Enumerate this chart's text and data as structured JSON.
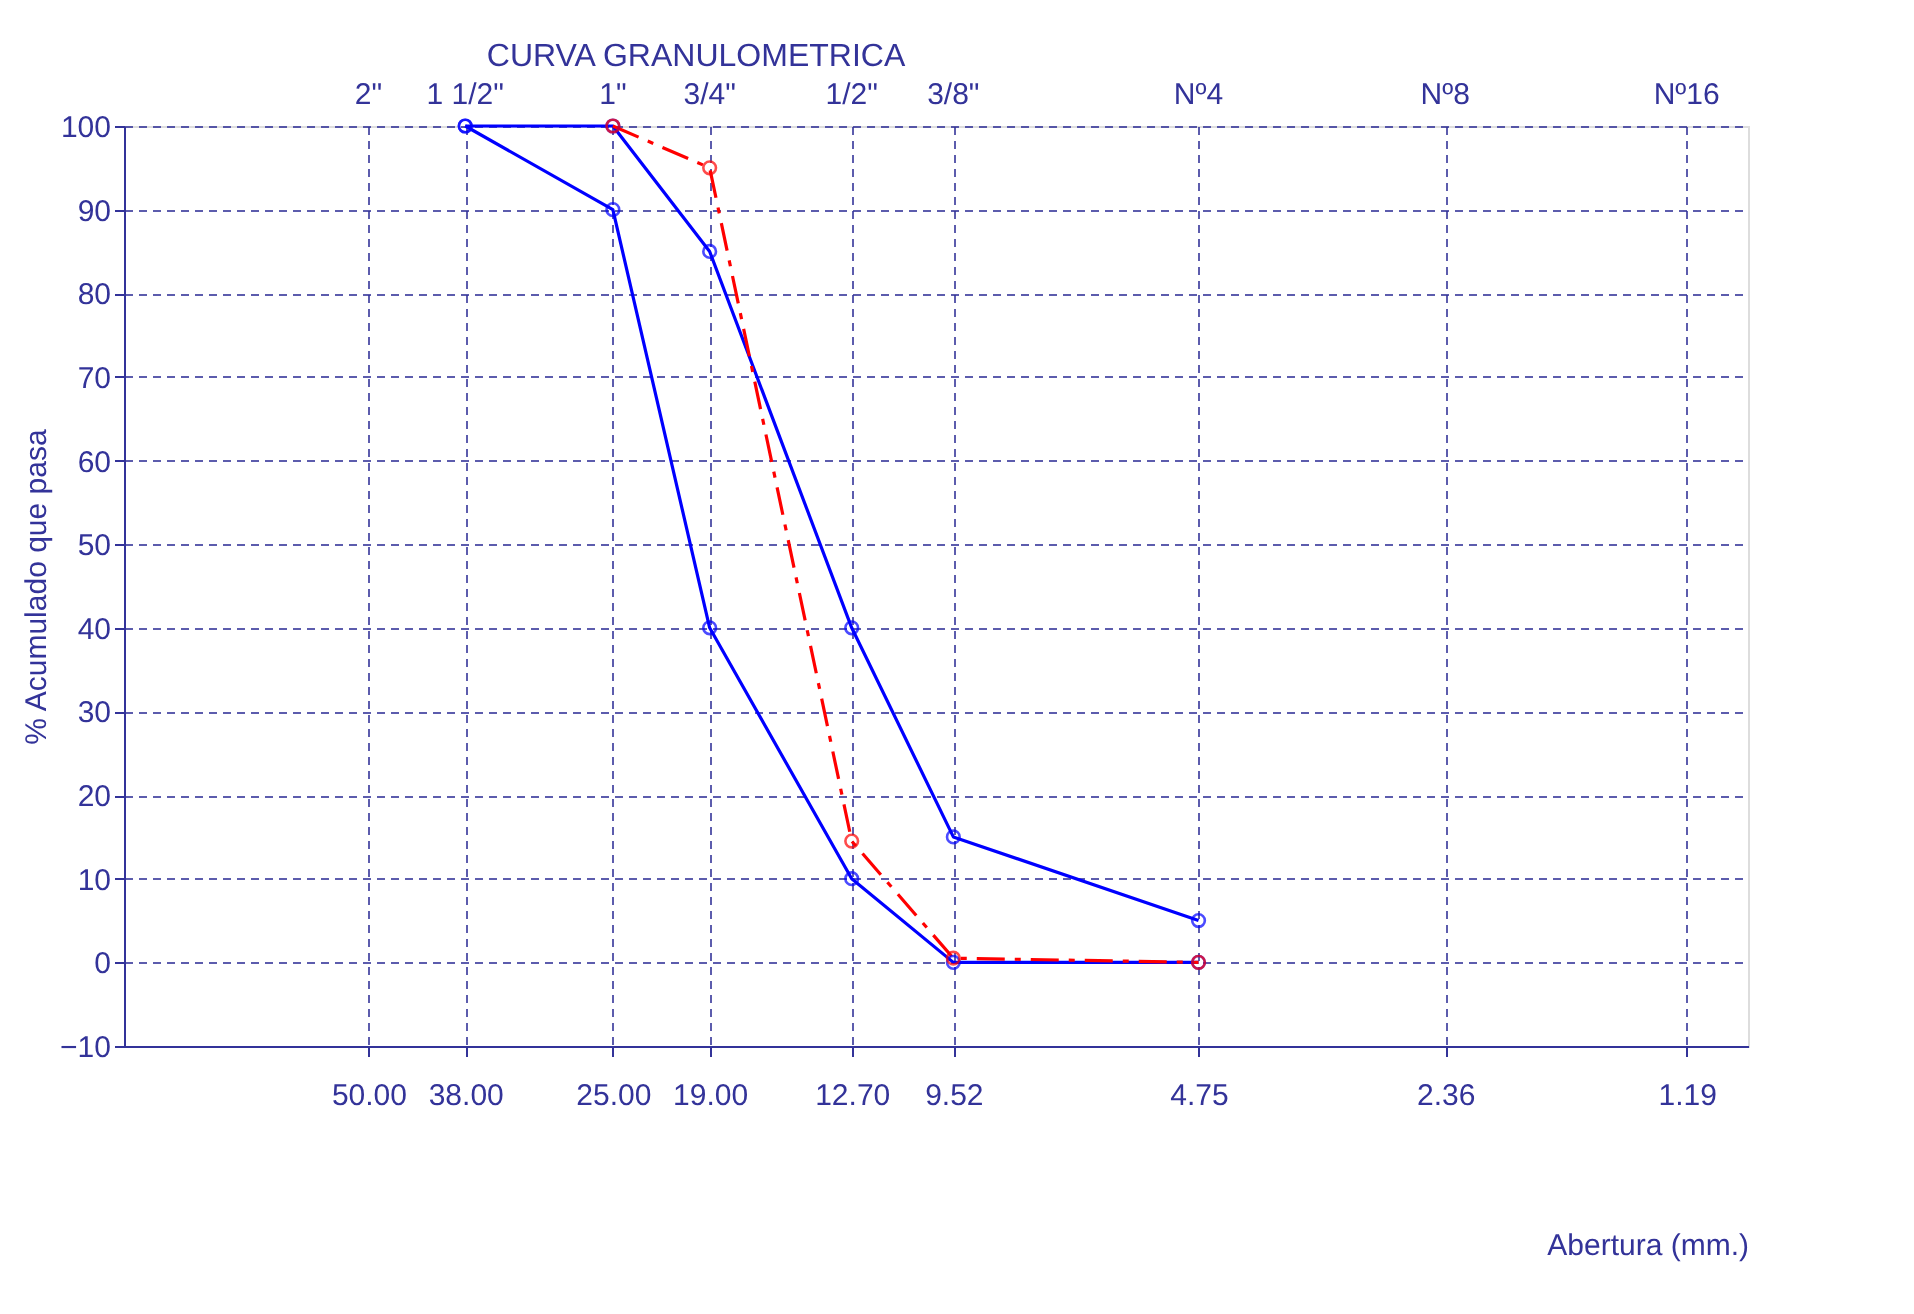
{
  "chart_data": {
    "type": "line",
    "title": "CURVA GRANULOMETRICA",
    "xlabel": "Abertura (mm.)",
    "ylabel": "% Acumulado que pasa",
    "log": "x",
    "xlim": [
      100,
      1
    ],
    "ylim": [
      -10,
      100
    ],
    "xticks": [
      {
        "value": 50,
        "label": "50.00"
      },
      {
        "value": 38,
        "label": "38.00"
      },
      {
        "value": 25,
        "label": "25.00"
      },
      {
        "value": 19,
        "label": "19.00"
      },
      {
        "value": 12.7,
        "label": "12.70"
      },
      {
        "value": 9.52,
        "label": "9.52"
      },
      {
        "value": 4.75,
        "label": "4.75"
      },
      {
        "value": 2.36,
        "label": "2.36"
      },
      {
        "value": 1.19,
        "label": "1.19"
      }
    ],
    "annotations": [
      "2\"",
      "1 1/2\"",
      "1\"",
      "3/4\"",
      "1/2\"",
      "3/8\"",
      "Nº4",
      "Nº8",
      "Nº16"
    ],
    "yticks": [
      -10,
      0,
      10,
      20,
      30,
      40,
      50,
      60,
      70,
      80,
      90,
      100
    ],
    "grid": true,
    "legend": false,
    "marker": "circle",
    "series": [
      {
        "color": "#0000ff",
        "line_style": "solid",
        "x": [
          38,
          25,
          19,
          12.7,
          9.52,
          4.75
        ],
        "values": [
          100,
          90,
          40,
          10,
          0,
          0
        ]
      },
      {
        "color": "#0000ff",
        "line_style": "solid",
        "x": [
          38,
          25,
          19,
          12.7,
          9.52,
          4.75
        ],
        "values": [
          100,
          100,
          85,
          40,
          15,
          5
        ]
      },
      {
        "color": "#ff0000",
        "line_style": "dashed",
        "x": [
          25,
          19,
          12.7,
          9.52,
          4.75
        ],
        "values": [
          100,
          95,
          14.5,
          0.5,
          0
        ]
      }
    ]
  }
}
